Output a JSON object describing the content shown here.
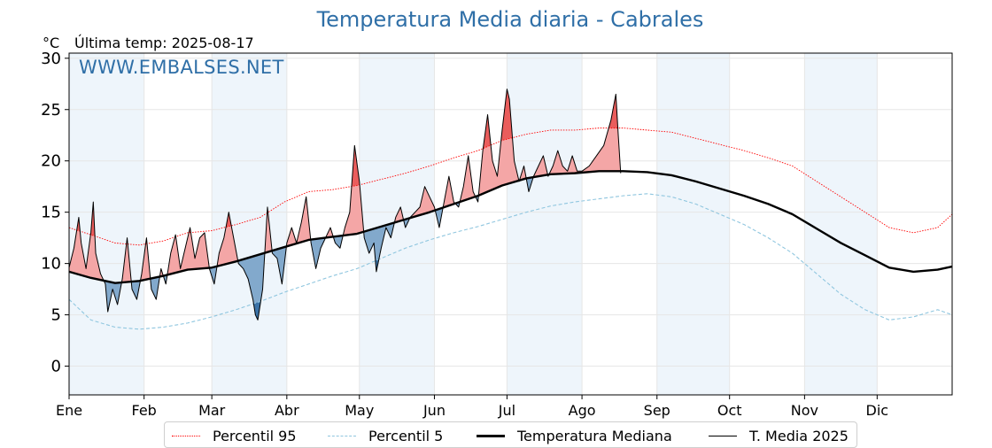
{
  "chart_data": {
    "type": "line",
    "title": "Temperatura Media diaria - Cabrales",
    "subtitle": "Última temp: 2025-08-17",
    "ylabel": "°C",
    "watermark": "WWW.EMBALSES.NET",
    "ylim": [
      -2.8,
      30.5
    ],
    "yticks": [
      0,
      5,
      10,
      15,
      20,
      25,
      30
    ],
    "xlim": [
      1,
      366
    ],
    "month_labels": [
      "Ene",
      "Feb",
      "Mar",
      "Abr",
      "May",
      "Jun",
      "Jul",
      "Ago",
      "Sep",
      "Oct",
      "Nov",
      "Dic"
    ],
    "month_start_days": [
      1,
      32,
      60,
      91,
      121,
      152,
      182,
      213,
      244,
      274,
      305,
      335
    ],
    "shaded_months": [
      "Ene",
      "Mar",
      "May",
      "Jul",
      "Sep",
      "Nov"
    ],
    "grid": true,
    "legend_position": "bottom",
    "colors": {
      "p95": "#ff0000",
      "p5": "#8fc6df",
      "median": "#000000",
      "current": "#000000",
      "above_fill": "#f4a6a6",
      "above_fill_strong": "#e8504f",
      "below_fill": "#82a9cc",
      "below_fill_strong": "#2f6aa0",
      "month_band": "#eef5fb",
      "title": "#2f6fa7"
    },
    "series": [
      {
        "name": "Percentil 95",
        "style": "dotted-thin",
        "points": [
          [
            1,
            13.5
          ],
          [
            10,
            12.8
          ],
          [
            20,
            12.0
          ],
          [
            30,
            11.8
          ],
          [
            40,
            12.2
          ],
          [
            50,
            13.0
          ],
          [
            60,
            13.2
          ],
          [
            70,
            13.8
          ],
          [
            80,
            14.5
          ],
          [
            90,
            16.0
          ],
          [
            100,
            17.0
          ],
          [
            110,
            17.2
          ],
          [
            120,
            17.6
          ],
          [
            130,
            18.2
          ],
          [
            140,
            18.8
          ],
          [
            150,
            19.5
          ],
          [
            160,
            20.3
          ],
          [
            170,
            21.0
          ],
          [
            180,
            22.0
          ],
          [
            190,
            22.6
          ],
          [
            200,
            23.0
          ],
          [
            210,
            23.0
          ],
          [
            220,
            23.2
          ],
          [
            230,
            23.2
          ],
          [
            240,
            23.0
          ],
          [
            250,
            22.8
          ],
          [
            260,
            22.2
          ],
          [
            270,
            21.6
          ],
          [
            280,
            21.0
          ],
          [
            290,
            20.3
          ],
          [
            300,
            19.5
          ],
          [
            310,
            18.0
          ],
          [
            320,
            16.5
          ],
          [
            330,
            15.0
          ],
          [
            340,
            13.5
          ],
          [
            350,
            13.0
          ],
          [
            360,
            13.5
          ],
          [
            366,
            14.8
          ]
        ]
      },
      {
        "name": "Percentil 5",
        "style": "dashed-thin",
        "points": [
          [
            1,
            6.5
          ],
          [
            10,
            4.5
          ],
          [
            20,
            3.8
          ],
          [
            30,
            3.6
          ],
          [
            40,
            3.8
          ],
          [
            50,
            4.2
          ],
          [
            60,
            4.8
          ],
          [
            70,
            5.5
          ],
          [
            80,
            6.3
          ],
          [
            90,
            7.2
          ],
          [
            100,
            8.0
          ],
          [
            110,
            8.8
          ],
          [
            120,
            9.5
          ],
          [
            130,
            10.5
          ],
          [
            140,
            11.5
          ],
          [
            150,
            12.3
          ],
          [
            160,
            13.0
          ],
          [
            170,
            13.6
          ],
          [
            180,
            14.3
          ],
          [
            190,
            15.0
          ],
          [
            200,
            15.6
          ],
          [
            210,
            16.0
          ],
          [
            220,
            16.3
          ],
          [
            230,
            16.6
          ],
          [
            240,
            16.8
          ],
          [
            250,
            16.5
          ],
          [
            260,
            15.8
          ],
          [
            270,
            14.8
          ],
          [
            280,
            13.8
          ],
          [
            290,
            12.5
          ],
          [
            300,
            11.0
          ],
          [
            310,
            9.0
          ],
          [
            320,
            7.0
          ],
          [
            330,
            5.5
          ],
          [
            340,
            4.5
          ],
          [
            350,
            4.8
          ],
          [
            360,
            5.5
          ],
          [
            366,
            5.0
          ]
        ]
      },
      {
        "name": "Temperatura Mediana",
        "style": "solid-thick",
        "points": [
          [
            1,
            9.2
          ],
          [
            10,
            8.6
          ],
          [
            20,
            8.1
          ],
          [
            30,
            8.3
          ],
          [
            40,
            8.8
          ],
          [
            50,
            9.4
          ],
          [
            60,
            9.6
          ],
          [
            70,
            10.2
          ],
          [
            80,
            10.9
          ],
          [
            90,
            11.6
          ],
          [
            100,
            12.3
          ],
          [
            110,
            12.6
          ],
          [
            120,
            12.9
          ],
          [
            130,
            13.6
          ],
          [
            140,
            14.3
          ],
          [
            150,
            15.0
          ],
          [
            160,
            15.8
          ],
          [
            170,
            16.6
          ],
          [
            180,
            17.6
          ],
          [
            190,
            18.3
          ],
          [
            200,
            18.7
          ],
          [
            210,
            18.8
          ],
          [
            220,
            19.0
          ],
          [
            230,
            19.0
          ],
          [
            240,
            18.9
          ],
          [
            250,
            18.6
          ],
          [
            260,
            18.0
          ],
          [
            270,
            17.3
          ],
          [
            280,
            16.6
          ],
          [
            290,
            15.8
          ],
          [
            300,
            14.8
          ],
          [
            310,
            13.4
          ],
          [
            320,
            12.0
          ],
          [
            330,
            10.8
          ],
          [
            340,
            9.6
          ],
          [
            350,
            9.2
          ],
          [
            360,
            9.4
          ],
          [
            366,
            9.7
          ]
        ]
      },
      {
        "name": "T. Media 2025",
        "style": "solid-thin",
        "points": [
          [
            1,
            9.6
          ],
          [
            3,
            11.5
          ],
          [
            5,
            14.5
          ],
          [
            6,
            12.0
          ],
          [
            8,
            9.5
          ],
          [
            10,
            13.0
          ],
          [
            11,
            16.0
          ],
          [
            12,
            11.0
          ],
          [
            14,
            9.0
          ],
          [
            16,
            8.0
          ],
          [
            17,
            5.3
          ],
          [
            19,
            7.5
          ],
          [
            21,
            6.0
          ],
          [
            23,
            8.5
          ],
          [
            25,
            12.5
          ],
          [
            27,
            7.5
          ],
          [
            29,
            6.5
          ],
          [
            31,
            9.0
          ],
          [
            33,
            12.5
          ],
          [
            35,
            7.5
          ],
          [
            37,
            6.5
          ],
          [
            39,
            9.5
          ],
          [
            41,
            8.0
          ],
          [
            43,
            11.0
          ],
          [
            45,
            12.8
          ],
          [
            47,
            9.5
          ],
          [
            49,
            11.5
          ],
          [
            51,
            13.5
          ],
          [
            53,
            10.5
          ],
          [
            55,
            12.5
          ],
          [
            57,
            13.0
          ],
          [
            59,
            9.5
          ],
          [
            61,
            8.0
          ],
          [
            63,
            11.0
          ],
          [
            65,
            12.5
          ],
          [
            67,
            15.0
          ],
          [
            69,
            12.5
          ],
          [
            71,
            10.0
          ],
          [
            73,
            9.5
          ],
          [
            75,
            8.5
          ],
          [
            77,
            6.5
          ],
          [
            78,
            5.0
          ],
          [
            79,
            4.5
          ],
          [
            81,
            7.5
          ],
          [
            83,
            15.5
          ],
          [
            85,
            11.0
          ],
          [
            87,
            10.5
          ],
          [
            89,
            8.0
          ],
          [
            91,
            12.0
          ],
          [
            93,
            13.5
          ],
          [
            95,
            12.0
          ],
          [
            97,
            14.0
          ],
          [
            99,
            16.5
          ],
          [
            101,
            12.0
          ],
          [
            103,
            9.5
          ],
          [
            105,
            11.5
          ],
          [
            107,
            12.5
          ],
          [
            109,
            13.5
          ],
          [
            111,
            12.0
          ],
          [
            113,
            11.5
          ],
          [
            115,
            13.5
          ],
          [
            117,
            15.0
          ],
          [
            119,
            21.5
          ],
          [
            121,
            18.0
          ],
          [
            123,
            12.5
          ],
          [
            125,
            11.0
          ],
          [
            127,
            12.0
          ],
          [
            128,
            9.2
          ],
          [
            130,
            11.5
          ],
          [
            132,
            13.5
          ],
          [
            134,
            12.5
          ],
          [
            136,
            14.5
          ],
          [
            138,
            15.5
          ],
          [
            140,
            13.5
          ],
          [
            142,
            14.5
          ],
          [
            144,
            15.0
          ],
          [
            146,
            15.5
          ],
          [
            148,
            17.5
          ],
          [
            150,
            16.5
          ],
          [
            152,
            15.5
          ],
          [
            154,
            13.5
          ],
          [
            156,
            16.0
          ],
          [
            158,
            18.5
          ],
          [
            160,
            16.0
          ],
          [
            162,
            15.5
          ],
          [
            164,
            17.5
          ],
          [
            166,
            20.5
          ],
          [
            168,
            17.0
          ],
          [
            170,
            16.0
          ],
          [
            172,
            21.0
          ],
          [
            174,
            24.5
          ],
          [
            176,
            20.0
          ],
          [
            178,
            18.5
          ],
          [
            180,
            23.0
          ],
          [
            182,
            27.0
          ],
          [
            183,
            26.0
          ],
          [
            185,
            20.0
          ],
          [
            187,
            18.0
          ],
          [
            189,
            19.5
          ],
          [
            191,
            17.0
          ],
          [
            193,
            18.5
          ],
          [
            195,
            19.5
          ],
          [
            197,
            20.5
          ],
          [
            199,
            18.5
          ],
          [
            201,
            19.5
          ],
          [
            203,
            21.0
          ],
          [
            205,
            19.5
          ],
          [
            207,
            19.0
          ],
          [
            209,
            20.5
          ],
          [
            211,
            19.0
          ],
          [
            213,
            19.0
          ],
          [
            216,
            19.5
          ],
          [
            219,
            20.5
          ],
          [
            222,
            21.5
          ],
          [
            225,
            24.0
          ],
          [
            227,
            26.5
          ],
          [
            228,
            22.5
          ],
          [
            229,
            18.8
          ]
        ]
      }
    ]
  },
  "legend": {
    "items": [
      {
        "label": "Percentil 95"
      },
      {
        "label": "Percentil 5"
      },
      {
        "label": "Temperatura Mediana"
      },
      {
        "label": "T. Media 2025"
      }
    ]
  }
}
